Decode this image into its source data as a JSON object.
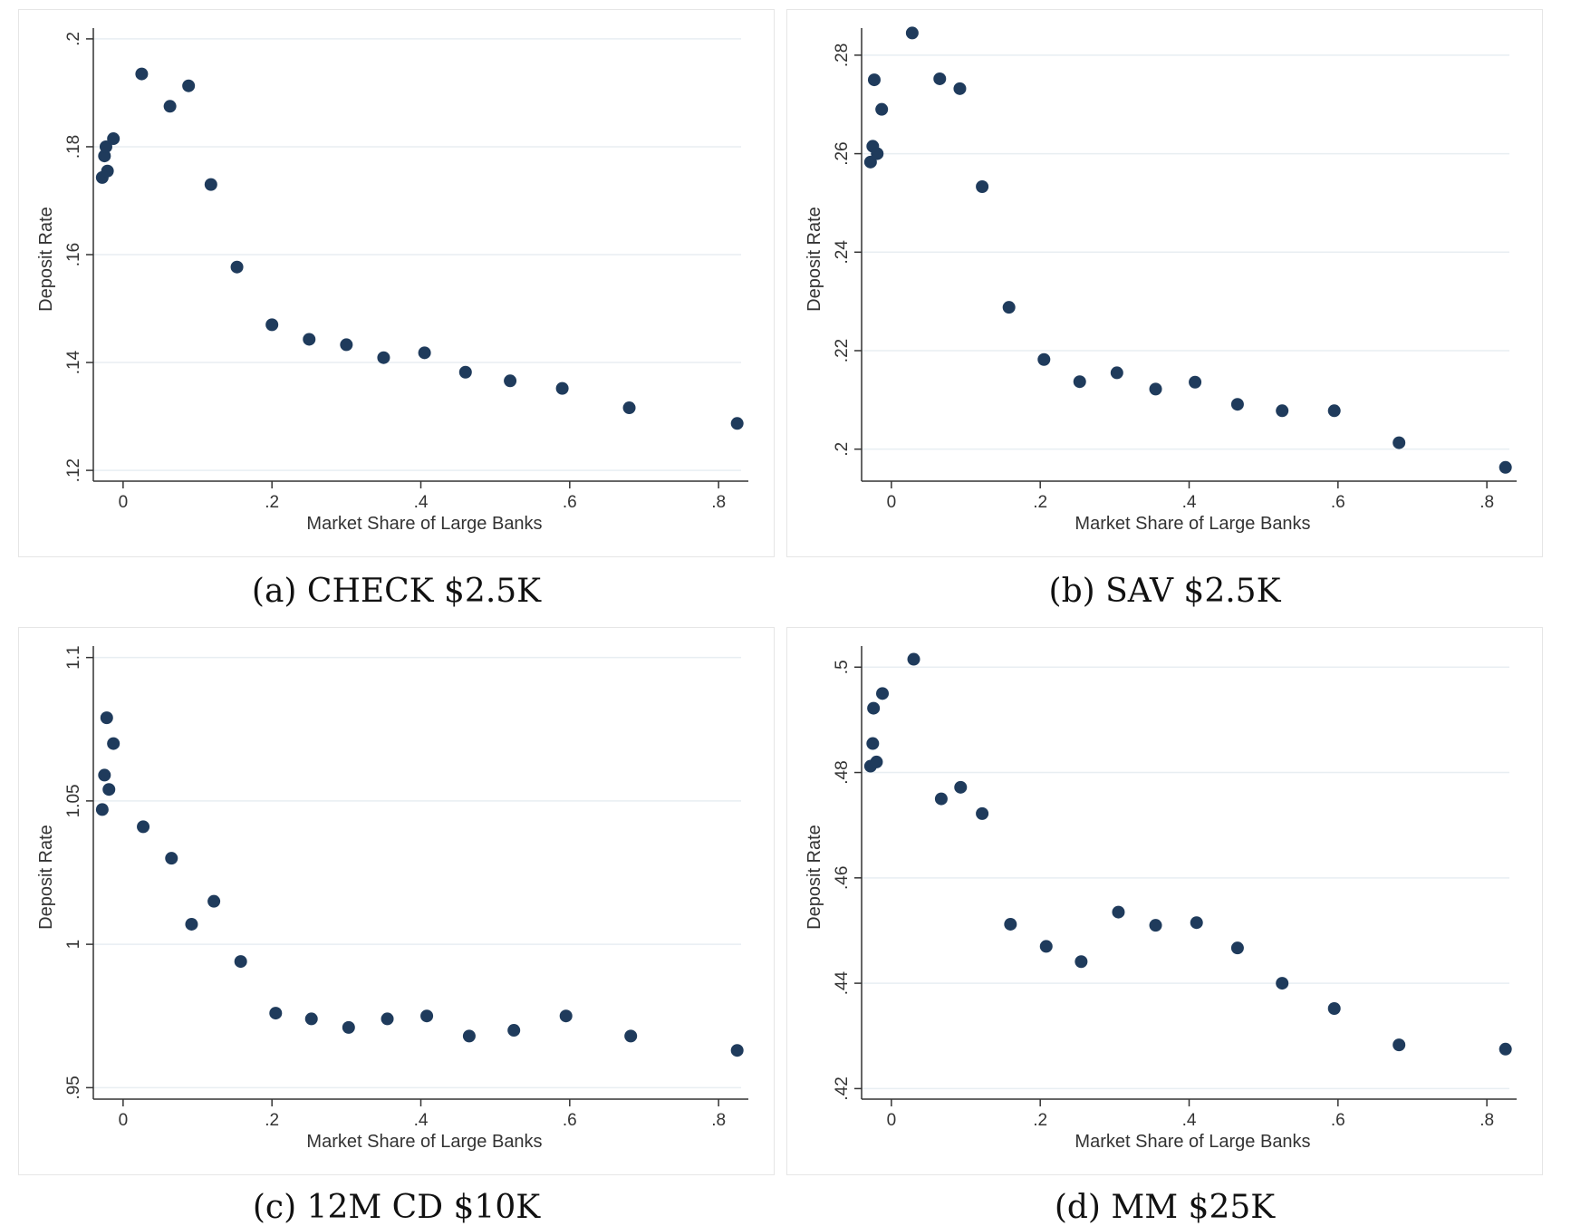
{
  "colors": {
    "marker": "#1f3b5c",
    "axis": "#333333",
    "grid": "#e8eef2",
    "caption": "#111111"
  },
  "chart_data": [
    {
      "type": "scatter",
      "caption": "(a) CHECK $2.5K",
      "xlabel": "Market Share of Large Banks",
      "ylabel": "Deposit Rate",
      "xlim": [
        -0.04,
        0.84
      ],
      "ylim": [
        0.118,
        0.202
      ],
      "xticks": [
        0,
        0.2,
        0.4,
        0.6,
        0.8
      ],
      "xtick_labels": [
        "0",
        ".2",
        ".4",
        ".6",
        ".8"
      ],
      "yticks": [
        0.12,
        0.14,
        0.16,
        0.18,
        0.2
      ],
      "ytick_labels": [
        ".12",
        ".14",
        ".16",
        ".18",
        ".2"
      ],
      "grid": true,
      "points": [
        {
          "x": -0.028,
          "y": 0.1743
        },
        {
          "x": -0.025,
          "y": 0.1783
        },
        {
          "x": -0.023,
          "y": 0.18
        },
        {
          "x": -0.021,
          "y": 0.1755
        },
        {
          "x": -0.013,
          "y": 0.1815
        },
        {
          "x": 0.025,
          "y": 0.1935
        },
        {
          "x": 0.063,
          "y": 0.1875
        },
        {
          "x": 0.088,
          "y": 0.1913
        },
        {
          "x": 0.118,
          "y": 0.173
        },
        {
          "x": 0.153,
          "y": 0.1577
        },
        {
          "x": 0.2,
          "y": 0.147
        },
        {
          "x": 0.25,
          "y": 0.1443
        },
        {
          "x": 0.3,
          "y": 0.1433
        },
        {
          "x": 0.35,
          "y": 0.1409
        },
        {
          "x": 0.405,
          "y": 0.1418
        },
        {
          "x": 0.46,
          "y": 0.1382
        },
        {
          "x": 0.52,
          "y": 0.1366
        },
        {
          "x": 0.59,
          "y": 0.1352
        },
        {
          "x": 0.68,
          "y": 0.1316
        },
        {
          "x": 0.825,
          "y": 0.1287
        }
      ]
    },
    {
      "type": "scatter",
      "caption": "(b) SAV $2.5K",
      "xlabel": "Market Share of Large Banks",
      "ylabel": "Deposit Rate",
      "xlim": [
        -0.04,
        0.84
      ],
      "ylim": [
        0.1935,
        0.2855
      ],
      "xticks": [
        0,
        0.2,
        0.4,
        0.6,
        0.8
      ],
      "xtick_labels": [
        "0",
        ".2",
        ".4",
        ".6",
        ".8"
      ],
      "yticks": [
        0.2,
        0.22,
        0.24,
        0.26,
        0.28
      ],
      "ytick_labels": [
        ".2",
        ".22",
        ".24",
        ".26",
        ".28"
      ],
      "grid": true,
      "points": [
        {
          "x": -0.028,
          "y": 0.2583
        },
        {
          "x": -0.025,
          "y": 0.2615
        },
        {
          "x": -0.023,
          "y": 0.275
        },
        {
          "x": -0.019,
          "y": 0.26
        },
        {
          "x": -0.013,
          "y": 0.269
        },
        {
          "x": 0.028,
          "y": 0.2845
        },
        {
          "x": 0.065,
          "y": 0.2752
        },
        {
          "x": 0.092,
          "y": 0.2732
        },
        {
          "x": 0.122,
          "y": 0.2533
        },
        {
          "x": 0.158,
          "y": 0.2288
        },
        {
          "x": 0.205,
          "y": 0.2182
        },
        {
          "x": 0.253,
          "y": 0.2137
        },
        {
          "x": 0.303,
          "y": 0.2155
        },
        {
          "x": 0.355,
          "y": 0.2122
        },
        {
          "x": 0.408,
          "y": 0.2136
        },
        {
          "x": 0.465,
          "y": 0.2091
        },
        {
          "x": 0.525,
          "y": 0.2078
        },
        {
          "x": 0.595,
          "y": 0.2078
        },
        {
          "x": 0.682,
          "y": 0.2013
        },
        {
          "x": 0.825,
          "y": 0.1963
        }
      ]
    },
    {
      "type": "scatter",
      "caption": "(c) 12M CD $10K",
      "xlabel": "Market Share of Large Banks",
      "ylabel": "Deposit Rate",
      "xlim": [
        -0.04,
        0.84
      ],
      "ylim": [
        0.946,
        1.104
      ],
      "xticks": [
        0,
        0.2,
        0.4,
        0.6,
        0.8
      ],
      "xtick_labels": [
        "0",
        ".2",
        ".4",
        ".6",
        ".8"
      ],
      "yticks": [
        0.95,
        1.0,
        1.05,
        1.1
      ],
      "ytick_labels": [
        ".95",
        "1",
        "1.05",
        "1.1"
      ],
      "grid": true,
      "points": [
        {
          "x": -0.028,
          "y": 1.047
        },
        {
          "x": -0.025,
          "y": 1.059
        },
        {
          "x": -0.022,
          "y": 1.079
        },
        {
          "x": -0.019,
          "y": 1.054
        },
        {
          "x": -0.013,
          "y": 1.07
        },
        {
          "x": 0.027,
          "y": 1.041
        },
        {
          "x": 0.065,
          "y": 1.03
        },
        {
          "x": 0.092,
          "y": 1.007
        },
        {
          "x": 0.122,
          "y": 1.015
        },
        {
          "x": 0.158,
          "y": 0.994
        },
        {
          "x": 0.205,
          "y": 0.976
        },
        {
          "x": 0.253,
          "y": 0.974
        },
        {
          "x": 0.303,
          "y": 0.971
        },
        {
          "x": 0.355,
          "y": 0.974
        },
        {
          "x": 0.408,
          "y": 0.975
        },
        {
          "x": 0.465,
          "y": 0.968
        },
        {
          "x": 0.525,
          "y": 0.97
        },
        {
          "x": 0.595,
          "y": 0.975
        },
        {
          "x": 0.682,
          "y": 0.968
        },
        {
          "x": 0.825,
          "y": 0.963
        }
      ]
    },
    {
      "type": "scatter",
      "caption": "(d) MM $25K",
      "xlabel": "Market Share of Large Banks",
      "ylabel": "Deposit Rate",
      "xlim": [
        -0.04,
        0.84
      ],
      "ylim": [
        0.418,
        0.504
      ],
      "xticks": [
        0,
        0.2,
        0.4,
        0.6,
        0.8
      ],
      "xtick_labels": [
        "0",
        ".2",
        ".4",
        ".6",
        ".8"
      ],
      "yticks": [
        0.42,
        0.44,
        0.46,
        0.48,
        0.5
      ],
      "ytick_labels": [
        ".42",
        ".44",
        ".46",
        ".48",
        ".5"
      ],
      "grid": true,
      "points": [
        {
          "x": -0.028,
          "y": 0.4812
        },
        {
          "x": -0.025,
          "y": 0.4855
        },
        {
          "x": -0.024,
          "y": 0.4922
        },
        {
          "x": -0.02,
          "y": 0.482
        },
        {
          "x": -0.012,
          "y": 0.495
        },
        {
          "x": 0.03,
          "y": 0.5015
        },
        {
          "x": 0.067,
          "y": 0.475
        },
        {
          "x": 0.093,
          "y": 0.4772
        },
        {
          "x": 0.122,
          "y": 0.4722
        },
        {
          "x": 0.16,
          "y": 0.4512
        },
        {
          "x": 0.208,
          "y": 0.447
        },
        {
          "x": 0.255,
          "y": 0.4441
        },
        {
          "x": 0.305,
          "y": 0.4535
        },
        {
          "x": 0.355,
          "y": 0.451
        },
        {
          "x": 0.41,
          "y": 0.4515
        },
        {
          "x": 0.465,
          "y": 0.4467
        },
        {
          "x": 0.525,
          "y": 0.44
        },
        {
          "x": 0.595,
          "y": 0.4352
        },
        {
          "x": 0.682,
          "y": 0.4283
        },
        {
          "x": 0.825,
          "y": 0.4275
        }
      ]
    }
  ]
}
